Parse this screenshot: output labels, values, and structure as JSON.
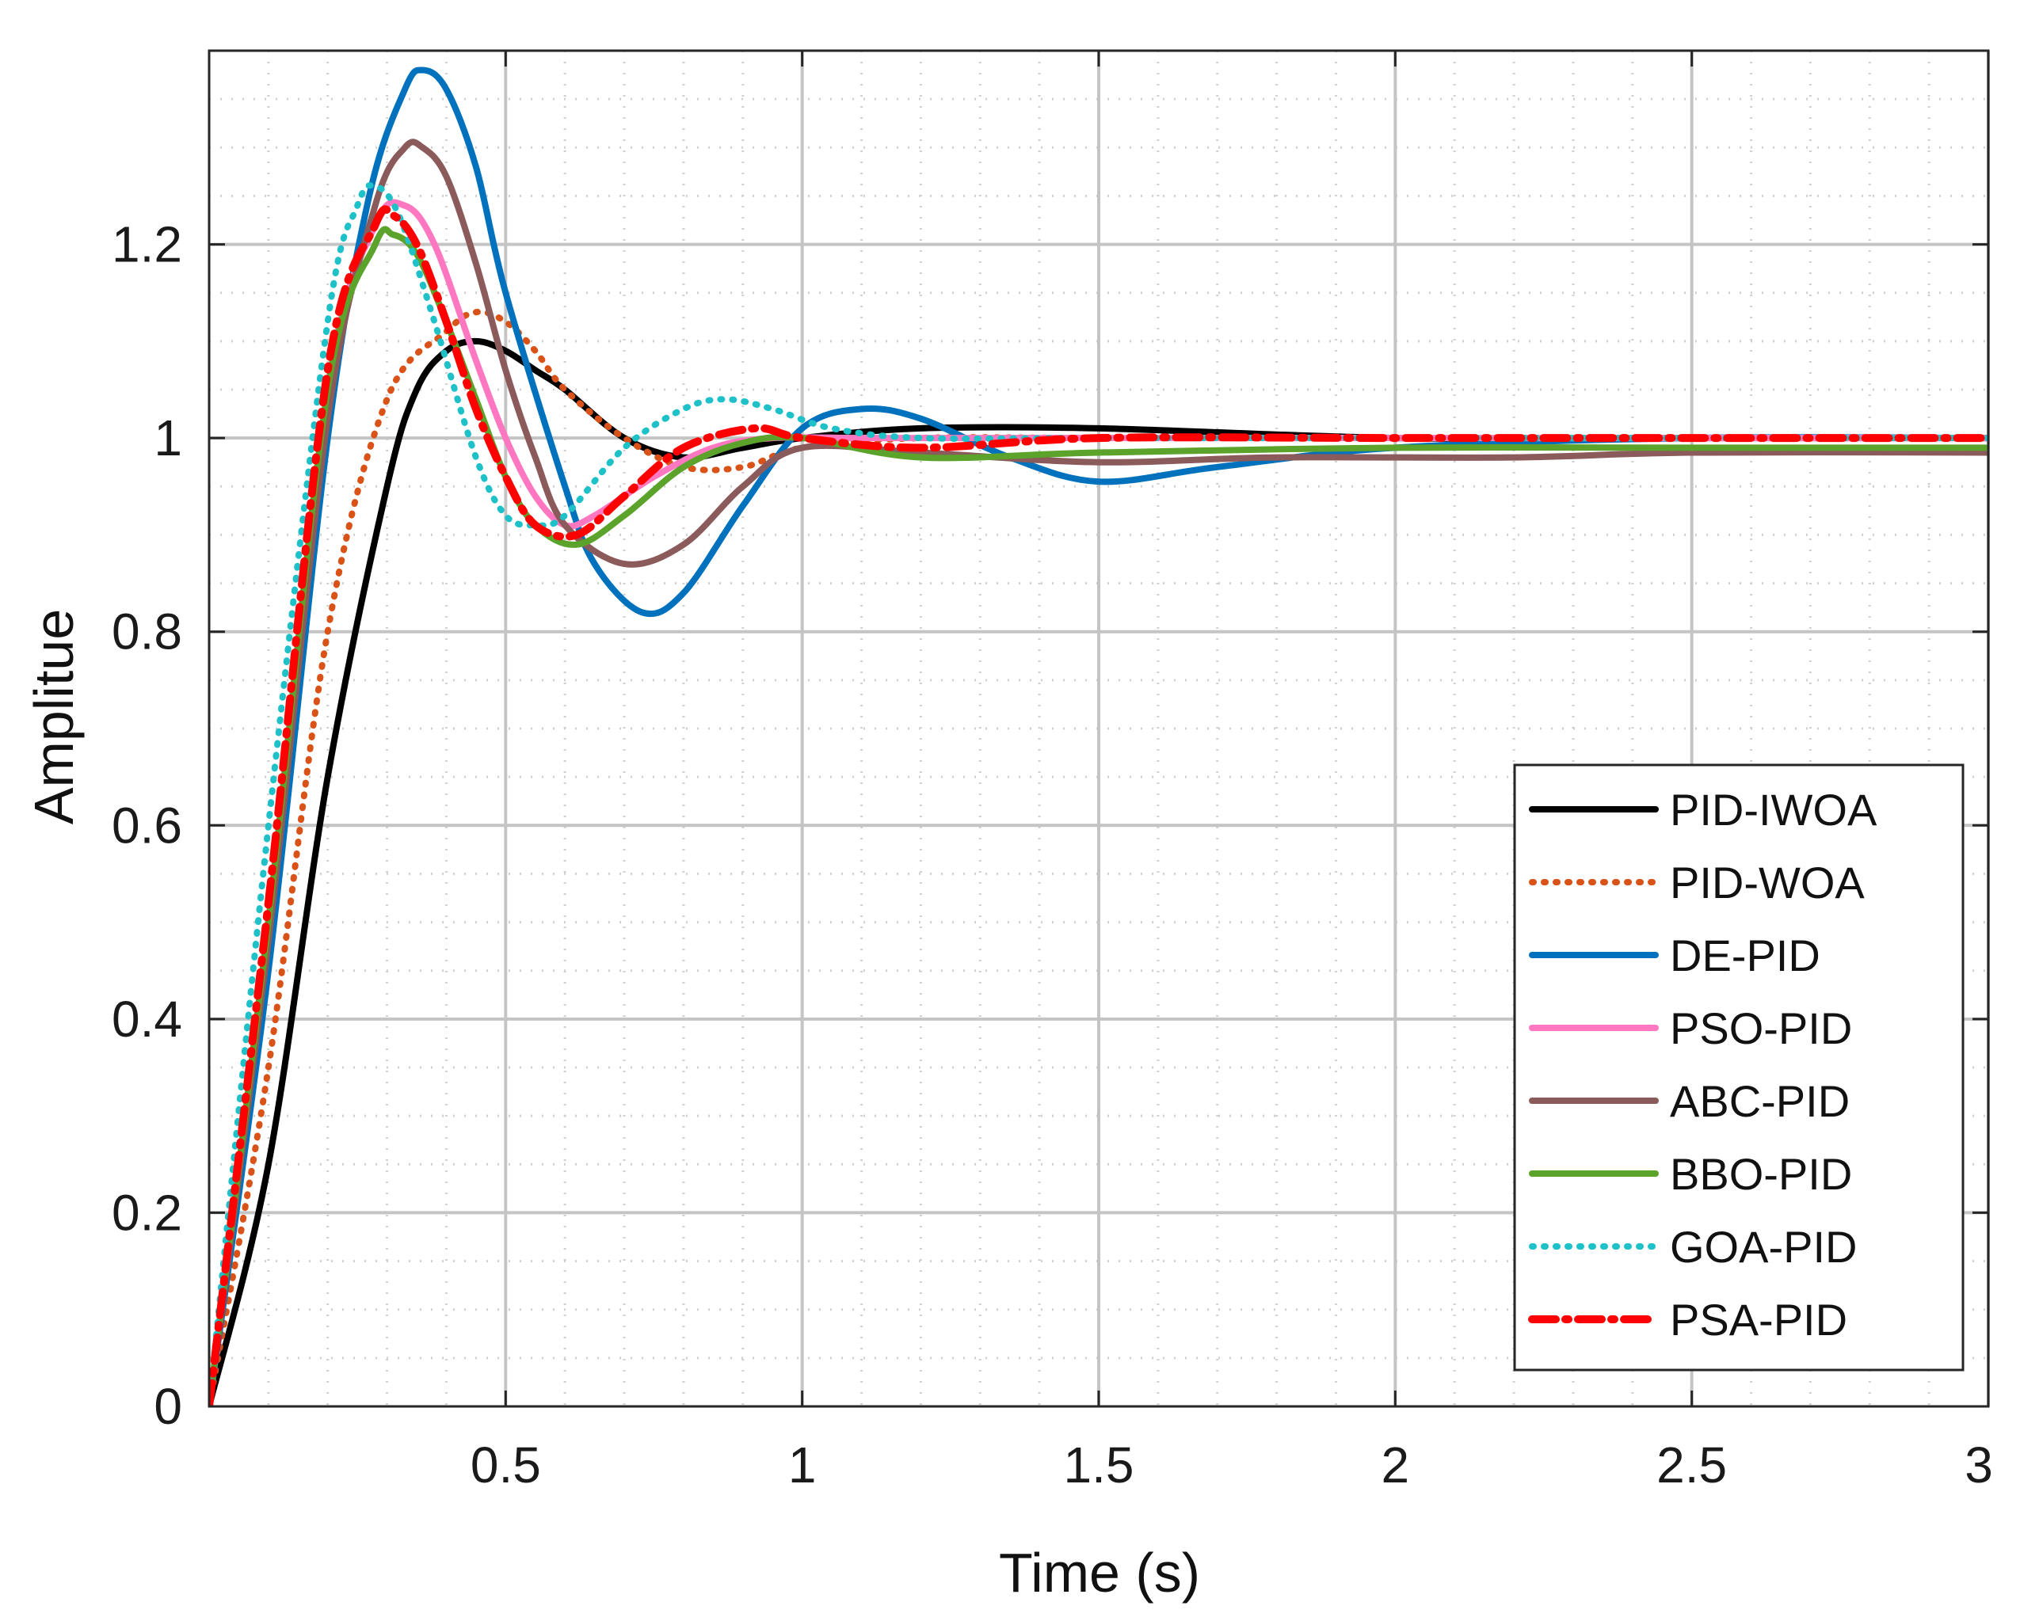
{
  "chart_data": {
    "type": "line",
    "title": "",
    "xlabel": "Time (s)",
    "ylabel": "Amplitue",
    "xlim": [
      0,
      3
    ],
    "ylim": [
      0,
      1.4
    ],
    "xticks": [
      0.5,
      1,
      1.5,
      2,
      2.5,
      3
    ],
    "xtick_labels": [
      "0.5",
      "1",
      "1.5",
      "2",
      "2.5",
      "3"
    ],
    "yticks": [
      0,
      0.2,
      0.4,
      0.6,
      0.8,
      1,
      1.2
    ],
    "ytick_labels": [
      "0",
      "0.2",
      "0.4",
      "0.6",
      "0.8",
      "1",
      "1.2"
    ],
    "grid": true,
    "minor_grid": true,
    "legend_position": "bottom-right",
    "series": [
      {
        "name": "PID-IWOA",
        "color": "#000000",
        "style": "solid",
        "x": [
          0,
          0.1,
          0.2,
          0.3,
          0.35,
          0.4,
          0.45,
          0.5,
          0.55,
          0.6,
          0.7,
          0.8,
          0.9,
          1.0,
          1.2,
          1.5,
          2.0,
          2.5,
          3.0
        ],
        "y": [
          0,
          0.25,
          0.65,
          0.95,
          1.05,
          1.09,
          1.1,
          1.09,
          1.07,
          1.05,
          1.0,
          0.98,
          0.99,
          1.0,
          1.01,
          1.01,
          1.0,
          1.0,
          1.0
        ]
      },
      {
        "name": "PID-WOA",
        "color": "#D95319",
        "style": "dotted",
        "x": [
          0,
          0.1,
          0.2,
          0.3,
          0.4,
          0.45,
          0.5,
          0.55,
          0.6,
          0.7,
          0.8,
          0.9,
          1.0,
          1.2,
          1.5,
          2.0,
          2.5,
          3.0
        ],
        "y": [
          0,
          0.35,
          0.8,
          1.04,
          1.11,
          1.13,
          1.12,
          1.09,
          1.05,
          1.0,
          0.97,
          0.97,
          0.99,
          1.0,
          1.0,
          1.0,
          1.0,
          1.0
        ]
      },
      {
        "name": "DE-PID",
        "color": "#0072BD",
        "style": "solid",
        "x": [
          0,
          0.1,
          0.2,
          0.27,
          0.33,
          0.36,
          0.4,
          0.45,
          0.5,
          0.6,
          0.65,
          0.73,
          0.8,
          0.9,
          1.0,
          1.1,
          1.2,
          1.35,
          1.5,
          1.7,
          2.0,
          2.5,
          3.0
        ],
        "y": [
          0,
          0.45,
          1.0,
          1.25,
          1.36,
          1.38,
          1.36,
          1.28,
          1.15,
          0.95,
          0.87,
          0.82,
          0.84,
          0.93,
          1.01,
          1.03,
          1.02,
          0.98,
          0.955,
          0.97,
          0.99,
          1.0,
          1.0
        ]
      },
      {
        "name": "PSO-PID",
        "color": "#FF77C0",
        "style": "solid",
        "x": [
          0,
          0.1,
          0.2,
          0.28,
          0.33,
          0.38,
          0.45,
          0.5,
          0.55,
          0.6,
          0.65,
          0.75,
          0.85,
          0.95,
          1.1,
          1.3,
          1.6,
          2.0,
          2.5,
          3.0
        ],
        "y": [
          0,
          0.5,
          1.05,
          1.22,
          1.24,
          1.2,
          1.08,
          1.0,
          0.94,
          0.91,
          0.92,
          0.96,
          0.99,
          1.0,
          1.0,
          1.0,
          1.0,
          1.0,
          1.0,
          1.0
        ]
      },
      {
        "name": "ABC-PID",
        "color": "#8B5A5A",
        "style": "solid",
        "x": [
          0,
          0.1,
          0.2,
          0.28,
          0.33,
          0.36,
          0.4,
          0.45,
          0.5,
          0.55,
          0.6,
          0.7,
          0.8,
          0.9,
          1.0,
          1.2,
          1.5,
          1.8,
          2.2,
          2.5,
          3.0
        ],
        "y": [
          0,
          0.48,
          1.02,
          1.24,
          1.3,
          1.3,
          1.27,
          1.18,
          1.07,
          0.98,
          0.91,
          0.87,
          0.89,
          0.95,
          0.99,
          0.985,
          0.975,
          0.98,
          0.98,
          0.985,
          0.985
        ]
      },
      {
        "name": "BBO-PID",
        "color": "#5BA32B",
        "style": "solid",
        "x": [
          0,
          0.1,
          0.2,
          0.28,
          0.31,
          0.35,
          0.4,
          0.45,
          0.5,
          0.55,
          0.62,
          0.7,
          0.8,
          0.9,
          1.0,
          1.2,
          1.5,
          2.0,
          2.5,
          3.0
        ],
        "y": [
          0,
          0.5,
          1.05,
          1.2,
          1.21,
          1.19,
          1.12,
          1.04,
          0.96,
          0.91,
          0.89,
          0.92,
          0.97,
          0.995,
          1.0,
          0.98,
          0.985,
          0.99,
          0.99,
          0.99
        ]
      },
      {
        "name": "GOA-PID",
        "color": "#1FC1C9",
        "style": "dotted",
        "x": [
          0,
          0.1,
          0.2,
          0.25,
          0.28,
          0.32,
          0.38,
          0.45,
          0.5,
          0.55,
          0.6,
          0.7,
          0.8,
          0.87,
          0.95,
          1.05,
          1.2,
          1.5,
          2.0,
          2.5,
          3.0
        ],
        "y": [
          0,
          0.6,
          1.12,
          1.24,
          1.26,
          1.23,
          1.12,
          0.98,
          0.92,
          0.91,
          0.92,
          0.99,
          1.03,
          1.04,
          1.03,
          1.01,
          1.0,
          1.0,
          1.0,
          1.0,
          1.0
        ]
      },
      {
        "name": "PSA-PID",
        "color": "#FF0000",
        "style": "dashdot",
        "x": [
          0,
          0.1,
          0.2,
          0.28,
          0.31,
          0.35,
          0.4,
          0.45,
          0.5,
          0.55,
          0.62,
          0.7,
          0.8,
          0.92,
          1.0,
          1.2,
          1.5,
          2.0,
          2.5,
          3.0
        ],
        "y": [
          0,
          0.52,
          1.07,
          1.22,
          1.23,
          1.2,
          1.12,
          1.03,
          0.96,
          0.91,
          0.9,
          0.94,
          0.99,
          1.01,
          1.0,
          0.99,
          1.0,
          1.0,
          1.0,
          1.0
        ]
      }
    ]
  }
}
